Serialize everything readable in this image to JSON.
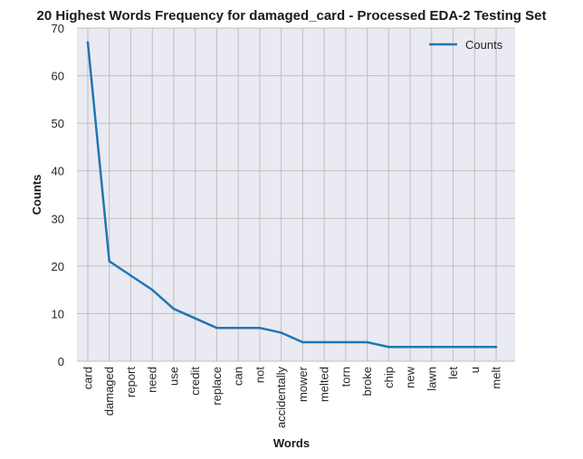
{
  "chart_data": {
    "type": "line",
    "title": "20 Highest Words Frequency for damaged_card - Processed EDA-2 Testing Set",
    "xlabel": "Words",
    "ylabel": "Counts",
    "categories": [
      "card",
      "damaged",
      "report",
      "need",
      "use",
      "credit",
      "replace",
      "can",
      "not",
      "accidentally",
      "mower",
      "melted",
      "torn",
      "broke",
      "chip",
      "new",
      "lawn",
      "let",
      "u",
      "melt"
    ],
    "series": [
      {
        "name": "Counts",
        "values": [
          67,
          21,
          18,
          15,
          11,
          9,
          7,
          7,
          7,
          6,
          4,
          4,
          4,
          4,
          3,
          3,
          3,
          3,
          3,
          3
        ],
        "color": "#1f77b4"
      }
    ],
    "ylim": [
      0,
      70
    ],
    "yticks": [
      0,
      10,
      20,
      30,
      40,
      50,
      60,
      70
    ],
    "grid": true,
    "legend_position": "top-right",
    "colors": {
      "plot_background": "#eaeaf2",
      "grid": "#bfbfbf",
      "line": "#1f77b4"
    }
  }
}
